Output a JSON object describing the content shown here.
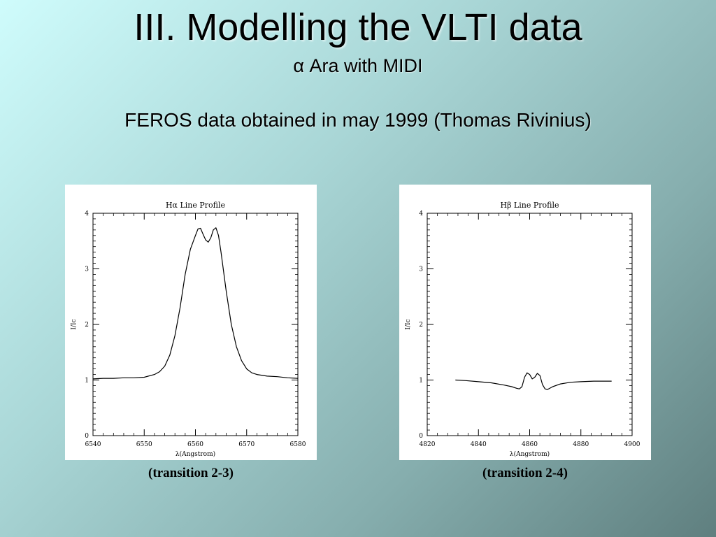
{
  "slide": {
    "title": "III. Modelling the VLTI data",
    "subtitle": "α Ara with MIDI",
    "note": "FEROS data obtained in may 1999 (Thomas Rivinius)"
  },
  "chart_data": [
    {
      "type": "line",
      "title": "Hα Line Profile",
      "xlabel": "λ(Angstrom)",
      "ylabel": "I/Ic",
      "xlim": [
        6540,
        6580
      ],
      "ylim": [
        0,
        4
      ],
      "xticks": [
        6540,
        6550,
        6560,
        6570,
        6580
      ],
      "yticks": [
        0,
        1,
        2,
        3,
        4
      ],
      "caption": "(transition 2-3)",
      "series": [
        {
          "x": [
            6540,
            6542,
            6544,
            6546,
            6548,
            6550,
            6552,
            6553,
            6554,
            6555,
            6556,
            6557,
            6558,
            6559,
            6560,
            6560.5,
            6561,
            6561.5,
            6562,
            6562.5,
            6563,
            6563.5,
            6564,
            6564.5,
            6565,
            6566,
            6567,
            6568,
            6569,
            6570,
            6571,
            6572,
            6574,
            6576,
            6578,
            6580
          ],
          "y": [
            1.02,
            1.03,
            1.03,
            1.04,
            1.04,
            1.05,
            1.1,
            1.15,
            1.25,
            1.45,
            1.8,
            2.3,
            2.9,
            3.35,
            3.6,
            3.72,
            3.73,
            3.62,
            3.52,
            3.48,
            3.56,
            3.7,
            3.74,
            3.6,
            3.3,
            2.6,
            2.0,
            1.6,
            1.35,
            1.2,
            1.13,
            1.1,
            1.07,
            1.06,
            1.04,
            1.03
          ]
        }
      ]
    },
    {
      "type": "line",
      "title": "Hβ Line Profile",
      "xlabel": "λ(Angstrom)",
      "ylabel": "I/Ic",
      "xlim": [
        4820,
        4900
      ],
      "ylim": [
        0,
        4
      ],
      "xticks": [
        4820,
        4840,
        4860,
        4880,
        4900
      ],
      "yticks": [
        0,
        1,
        2,
        3,
        4
      ],
      "caption": "(transition 2-4)",
      "series": [
        {
          "x": [
            4831,
            4835,
            4840,
            4845,
            4850,
            4853,
            4855,
            4856,
            4857,
            4858,
            4859,
            4860,
            4861,
            4862,
            4863,
            4864,
            4865,
            4866,
            4867,
            4869,
            4872,
            4876,
            4880,
            4885,
            4890,
            4892
          ],
          "y": [
            1.0,
            0.99,
            0.97,
            0.95,
            0.91,
            0.88,
            0.85,
            0.84,
            0.88,
            1.05,
            1.13,
            1.1,
            1.02,
            1.05,
            1.12,
            1.08,
            0.92,
            0.84,
            0.83,
            0.88,
            0.93,
            0.96,
            0.97,
            0.98,
            0.98,
            0.98
          ]
        }
      ]
    }
  ]
}
